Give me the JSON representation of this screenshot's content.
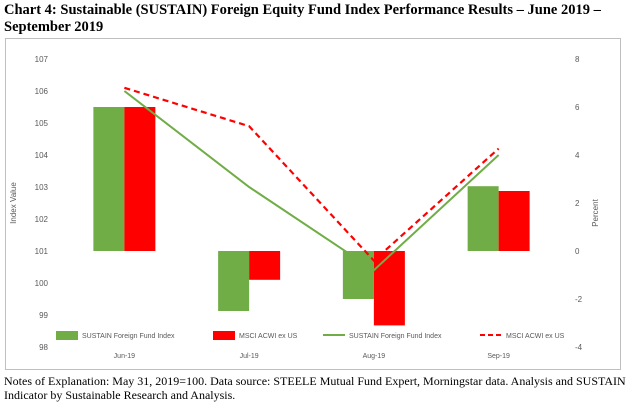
{
  "header": {
    "title": "Chart 4: Sustainable (SUSTAIN) Foreign Equity Fund Index Performance Results – June 2019 – September 2019"
  },
  "notes": "Notes of Explanation:  May 31, 2019=100.  Data source:  STEELE Mutual Fund Expert, Morningstar data. Analysis and SUSTAIN Indicator by Sustainable Research and Analysis.",
  "chart_data": {
    "type": "bar",
    "categories": [
      "Jun-19",
      "Jul-19",
      "Aug-19",
      "Sep-19"
    ],
    "left_axis": {
      "label": "Index Value",
      "min": 98,
      "max": 107,
      "ticks": [
        "98",
        "99",
        "100",
        "101",
        "102",
        "103",
        "104",
        "105",
        "106",
        "107"
      ]
    },
    "right_axis": {
      "label": "Percent",
      "min": -4,
      "max": 8,
      "ticks": [
        "-4",
        "-2",
        "0",
        "2",
        "4",
        "6",
        "8"
      ]
    },
    "bar_series": [
      {
        "name": "SUSTAIN Foreign Fund Index",
        "color": "#70ad47",
        "values": [
          6.0,
          -2.5,
          -2.0,
          2.7
        ]
      },
      {
        "name": "MSCI ACWI ex US",
        "color": "#ff0000",
        "values": [
          6.0,
          -1.2,
          -3.1,
          2.5
        ]
      }
    ],
    "line_series": [
      {
        "name": "SUSTAIN Foreign Fund Index",
        "color": "#70ad47",
        "style": "solid",
        "values": [
          106.0,
          103.0,
          100.4,
          104.0
        ]
      },
      {
        "name": "MSCI ACWI ex US",
        "color": "#ff0000",
        "style": "dashed",
        "values": [
          106.1,
          104.9,
          100.7,
          104.2
        ]
      }
    ],
    "grid": false,
    "legend": "bottom"
  }
}
